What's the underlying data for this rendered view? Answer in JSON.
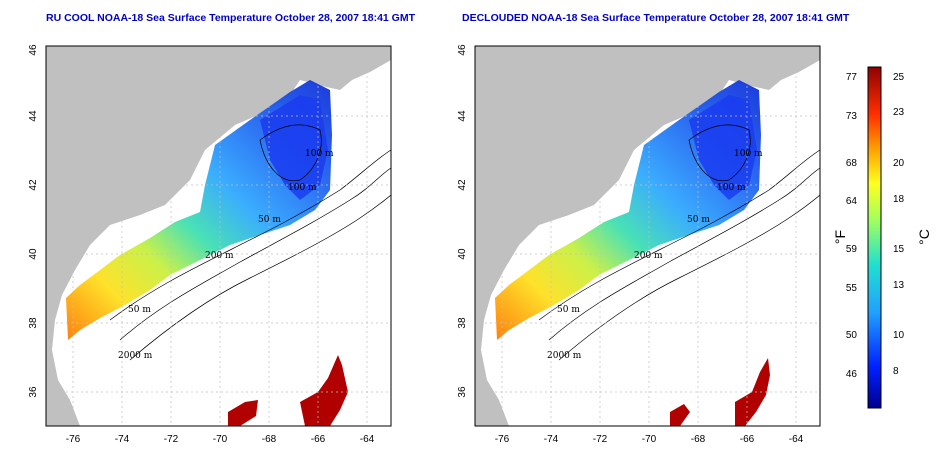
{
  "panels": [
    {
      "title": "RU COOL NOAA-18 Sea Surface Temperature October 28, 2007 18:41 GMT",
      "contour_labels": [
        "100 m",
        "100 m",
        "50 m",
        "200 m",
        "50 m",
        "2000 m"
      ]
    },
    {
      "title": "DECLOUDED NOAA-18 Sea Surface Temperature October 28, 2007 18:41 GMT",
      "contour_labels": [
        "100 m",
        "100 m",
        "50 m",
        "200 m",
        "50 m",
        "2000 m"
      ]
    }
  ],
  "axes": {
    "lon_ticks": [
      "-76",
      "-74",
      "-72",
      "-70",
      "-68",
      "-66",
      "-64"
    ],
    "lat_ticks": [
      "46",
      "44",
      "42",
      "40",
      "38",
      "36"
    ]
  },
  "colorbar": {
    "fahrenheit_label": "°F",
    "celsius_label": "°C",
    "fahrenheit_ticks": [
      "77",
      "73",
      "68",
      "64",
      "59",
      "55",
      "50",
      "46"
    ],
    "celsius_ticks": [
      "25",
      "23",
      "20",
      "18",
      "15",
      "13",
      "10",
      "8"
    ]
  },
  "colors": {
    "land": "#c0c0c0",
    "cold": "#1040e0",
    "warm": "#b00000",
    "title": "#0000c8"
  }
}
